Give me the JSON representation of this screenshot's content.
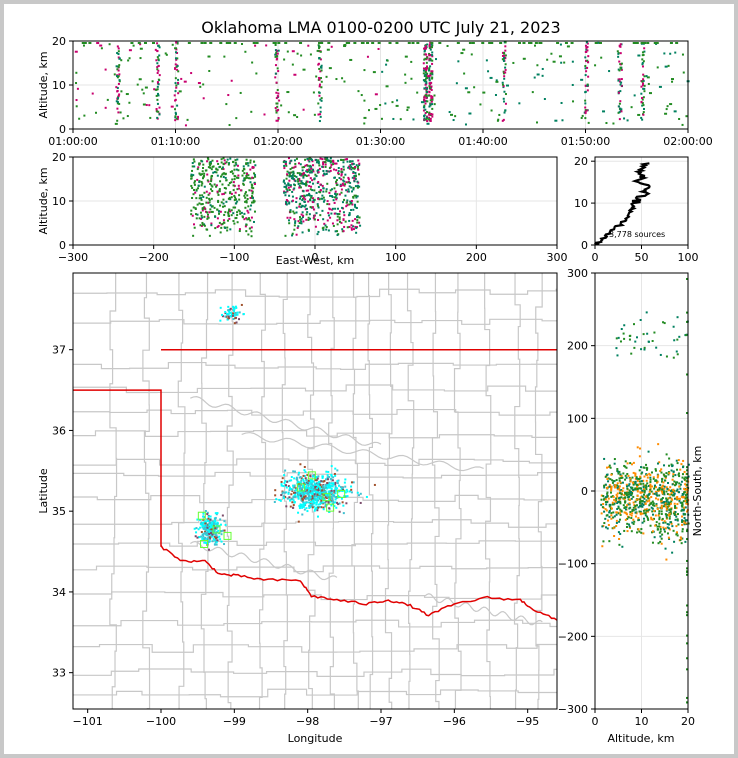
{
  "chart_data": [
    {
      "type": "scatter",
      "panel": "altitude-vs-time",
      "title": "Oklahoma LMA 0100-0200 UTC July 21, 2023",
      "xlabel": "",
      "ylabel": "Altitude, km",
      "x_tick_labels": [
        "01:00:00",
        "01:10:00",
        "01:20:00",
        "01:30:00",
        "01:40:00",
        "01:50:00",
        "02:00:00"
      ],
      "xlim": [
        "01:00:00",
        "02:00:00"
      ],
      "ylim": [
        0,
        20
      ],
      "y_ticks": [
        0,
        10,
        20
      ],
      "grid": true,
      "event_columns_minutes": [
        4.3,
        8.2,
        10.0,
        19.8,
        24.0,
        34.3,
        34.8,
        42.0,
        50.0,
        53.3,
        55.5
      ]
    },
    {
      "type": "scatter",
      "panel": "altitude-vs-east-west",
      "xlabel": "East-West, km",
      "ylabel": "Altitude, km",
      "xlim": [
        -300,
        300
      ],
      "ylim": [
        0,
        20
      ],
      "x_ticks": [
        -300,
        -200,
        -100,
        0,
        100,
        200,
        300
      ],
      "y_ticks": [
        0,
        10,
        20
      ],
      "grid": true,
      "clusters_km": [
        {
          "x_range": [
            -155,
            -75
          ]
        },
        {
          "x_range": [
            -40,
            55
          ]
        }
      ]
    },
    {
      "type": "line",
      "panel": "source-count-histogram",
      "xlim": [
        0,
        100
      ],
      "ylim": [
        0,
        21
      ],
      "x_ticks": [
        0,
        50,
        100
      ],
      "y_ticks": [
        0,
        10,
        20
      ],
      "annotation": "3,778 sources",
      "profile": [
        {
          "count": 2,
          "alt": 0.5
        },
        {
          "count": 8,
          "alt": 1.5
        },
        {
          "count": 12,
          "alt": 2.5
        },
        {
          "count": 17,
          "alt": 3.5
        },
        {
          "count": 22,
          "alt": 4.5
        },
        {
          "count": 28,
          "alt": 5.5
        },
        {
          "count": 34,
          "alt": 6.5
        },
        {
          "count": 36,
          "alt": 7.5
        },
        {
          "count": 38,
          "alt": 8.5
        },
        {
          "count": 41,
          "alt": 9.5
        },
        {
          "count": 44,
          "alt": 10.5
        },
        {
          "count": 47,
          "alt": 11.5
        },
        {
          "count": 58,
          "alt": 12.5
        },
        {
          "count": 52,
          "alt": 13.5
        },
        {
          "count": 55,
          "alt": 14.5
        },
        {
          "count": 47,
          "alt": 15.5
        },
        {
          "count": 52,
          "alt": 16.5
        },
        {
          "count": 49,
          "alt": 17.5
        },
        {
          "count": 53,
          "alt": 18.5
        },
        {
          "count": 55,
          "alt": 19.5
        }
      ]
    },
    {
      "type": "scatter",
      "panel": "plan-view-map",
      "xlabel": "Longitude",
      "ylabel": "Latitude",
      "xlim": [
        -101.2,
        -94.6
      ],
      "ylim": [
        32.55,
        37.95
      ],
      "x_ticks": [
        -101,
        -100,
        -99,
        -98,
        -97,
        -96,
        -95
      ],
      "y_ticks": [
        33,
        34,
        35,
        36,
        37
      ],
      "clusters_deg": [
        {
          "lon": -97.9,
          "lat": 35.25
        },
        {
          "lon": -99.35,
          "lat": 34.78
        },
        {
          "lon": -99.05,
          "lat": 37.45
        }
      ],
      "network_stations_deg": [
        {
          "lon": -97.95,
          "lat": 35.45
        },
        {
          "lon": -97.55,
          "lat": 35.22
        },
        {
          "lon": -97.75,
          "lat": 35.18
        },
        {
          "lon": -98.1,
          "lat": 35.3
        },
        {
          "lon": -97.7,
          "lat": 35.05
        },
        {
          "lon": -99.45,
          "lat": 34.95
        },
        {
          "lon": -99.25,
          "lat": 34.78
        },
        {
          "lon": -99.1,
          "lat": 34.7
        },
        {
          "lon": -99.42,
          "lat": 34.6
        }
      ]
    },
    {
      "type": "scatter",
      "panel": "north-south-vs-altitude",
      "xlabel": "Altitude, km",
      "ylabel": "North-South, km",
      "xlim": [
        0,
        20
      ],
      "ylim": [
        -300,
        300
      ],
      "x_ticks": [
        0,
        10,
        20
      ],
      "y_ticks": [
        -300,
        -200,
        -100,
        0,
        100,
        200,
        300
      ],
      "grid": true
    }
  ],
  "colors": {
    "early": "#228b22",
    "mid": "#008060",
    "late": "#c8006e",
    "map_early": "#00ffff",
    "map_late": "#a0522d",
    "ns_orange": "#ff8c00",
    "stations": "#66ff33",
    "state_border": "#e00000",
    "county_lines": "#c8c8c8",
    "grid": "#e6e6e6"
  }
}
